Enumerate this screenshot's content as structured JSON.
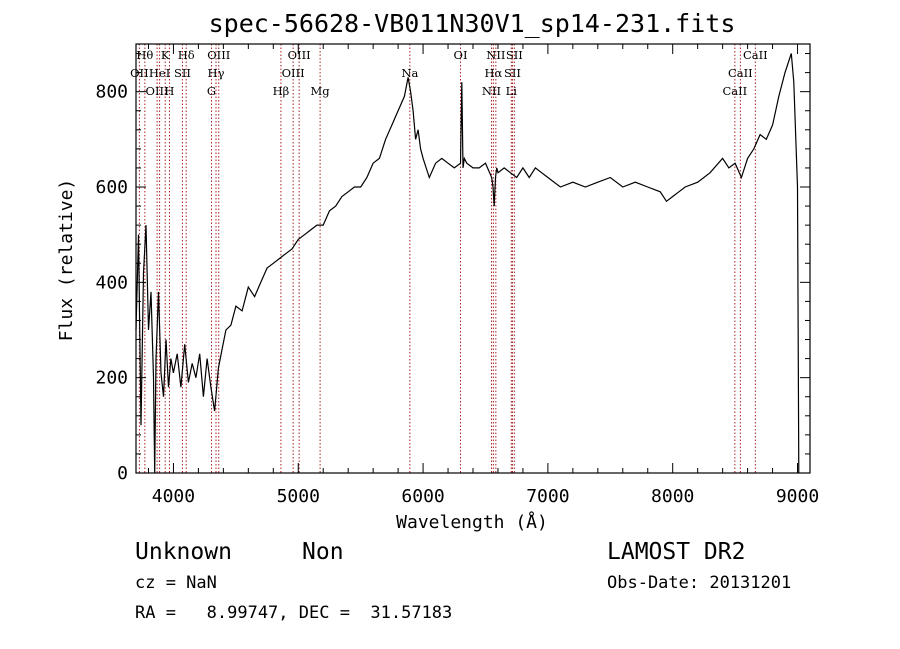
{
  "chart_data": {
    "type": "line",
    "title": "spec-56628-VB011N30V1_sp14-231.fits",
    "xlabel": "Wavelength (Å)",
    "ylabel": "Flux (relative)",
    "xlim": [
      3700,
      9100
    ],
    "ylim": [
      0,
      900
    ],
    "xticks": [
      4000,
      5000,
      6000,
      7000,
      8000,
      9000
    ],
    "yticks": [
      0,
      200,
      400,
      600,
      800
    ],
    "grid": false,
    "line_color": "#000000",
    "marker_color": "#aa2222",
    "series": [
      {
        "x": [
          3700,
          3720,
          3740,
          3760,
          3780,
          3800,
          3820,
          3840,
          3850,
          3860,
          3880,
          3900,
          3920,
          3940,
          3960,
          3980,
          4000,
          4030,
          4060,
          4090,
          4120,
          4150,
          4180,
          4210,
          4240,
          4270,
          4300,
          4330,
          4360,
          4390,
          4420,
          4460,
          4500,
          4550,
          4600,
          4650,
          4700,
          4750,
          4800,
          4850,
          4900,
          4950,
          5000,
          5050,
          5100,
          5150,
          5200,
          5250,
          5300,
          5350,
          5400,
          5450,
          5500,
          5550,
          5600,
          5650,
          5700,
          5750,
          5800,
          5850,
          5880,
          5900,
          5920,
          5940,
          5960,
          5980,
          6000,
          6050,
          6100,
          6150,
          6200,
          6250,
          6300,
          6310,
          6320,
          6330,
          6350,
          6400,
          6450,
          6500,
          6550,
          6560,
          6570,
          6580,
          6590,
          6600,
          6650,
          6700,
          6750,
          6800,
          6850,
          6900,
          6950,
          7000,
          7100,
          7200,
          7300,
          7400,
          7500,
          7600,
          7700,
          7800,
          7900,
          7950,
          8000,
          8050,
          8100,
          8200,
          8300,
          8400,
          8450,
          8500,
          8550,
          8600,
          8650,
          8700,
          8750,
          8800,
          8850,
          8900,
          8950,
          8970,
          9000,
          9010
        ],
        "y": [
          300,
          500,
          100,
          420,
          520,
          300,
          380,
          200,
          0,
          240,
          380,
          210,
          160,
          280,
          180,
          240,
          210,
          250,
          180,
          270,
          190,
          230,
          200,
          250,
          160,
          240,
          180,
          130,
          220,
          260,
          300,
          310,
          350,
          340,
          390,
          370,
          400,
          430,
          440,
          450,
          460,
          470,
          490,
          500,
          510,
          520,
          520,
          550,
          560,
          580,
          590,
          600,
          600,
          620,
          650,
          660,
          700,
          730,
          760,
          790,
          830,
          800,
          760,
          700,
          720,
          680,
          660,
          620,
          650,
          660,
          650,
          640,
          650,
          820,
          640,
          660,
          650,
          640,
          640,
          650,
          620,
          600,
          560,
          620,
          640,
          630,
          640,
          630,
          620,
          640,
          620,
          640,
          630,
          620,
          600,
          610,
          600,
          610,
          620,
          600,
          610,
          600,
          590,
          570,
          580,
          590,
          600,
          610,
          630,
          660,
          640,
          650,
          620,
          660,
          680,
          710,
          700,
          730,
          790,
          840,
          880,
          820,
          600,
          0
        ]
      }
    ],
    "lines": [
      {
        "label": "OII",
        "x": 3727,
        "row": 1
      },
      {
        "label": "Hθ",
        "x": 3771,
        "row": 0
      },
      {
        "label": "OIII",
        "x": 3869,
        "row": 2
      },
      {
        "label": "HeI",
        "x": 3889,
        "row": 1
      },
      {
        "label": "K",
        "x": 3934,
        "row": 0
      },
      {
        "label": "H",
        "x": 3968,
        "row": 2
      },
      {
        "label": "SII",
        "x": 4072,
        "row": 1
      },
      {
        "label": "Hδ",
        "x": 4102,
        "row": 0
      },
      {
        "label": "G",
        "x": 4305,
        "row": 2
      },
      {
        "label": "Hγ",
        "x": 4341,
        "row": 1
      },
      {
        "label": "OIII",
        "x": 4363,
        "row": 0
      },
      {
        "label": "Hβ",
        "x": 4861,
        "row": 2
      },
      {
        "label": "OIII",
        "x": 4959,
        "row": 1
      },
      {
        "label": "OIII",
        "x": 5007,
        "row": 0
      },
      {
        "label": "Mg",
        "x": 5175,
        "row": 2
      },
      {
        "label": "Na",
        "x": 5894,
        "row": 1
      },
      {
        "label": "OI",
        "x": 6300,
        "row": 0
      },
      {
        "label": "NII",
        "x": 6548,
        "row": 2
      },
      {
        "label": "Hα",
        "x": 6563,
        "row": 1
      },
      {
        "label": "NII",
        "x": 6583,
        "row": 0
      },
      {
        "label": "Li",
        "x": 6707,
        "row": 2
      },
      {
        "label": "SII",
        "x": 6716,
        "row": 1
      },
      {
        "label": "SII",
        "x": 6731,
        "row": 0
      },
      {
        "label": "CaII",
        "x": 8498,
        "row": 2
      },
      {
        "label": "CaII",
        "x": 8542,
        "row": 1
      },
      {
        "label": "CaII",
        "x": 8662,
        "row": 0
      }
    ]
  },
  "footer": {
    "object_class": "Unknown",
    "subclass": "Non",
    "redshift": "cz = NaN",
    "coordinates": "RA =   8.99747, DEC =  31.57183",
    "survey": "LAMOST DR2",
    "obs_date": "Obs-Date: 20131201"
  }
}
